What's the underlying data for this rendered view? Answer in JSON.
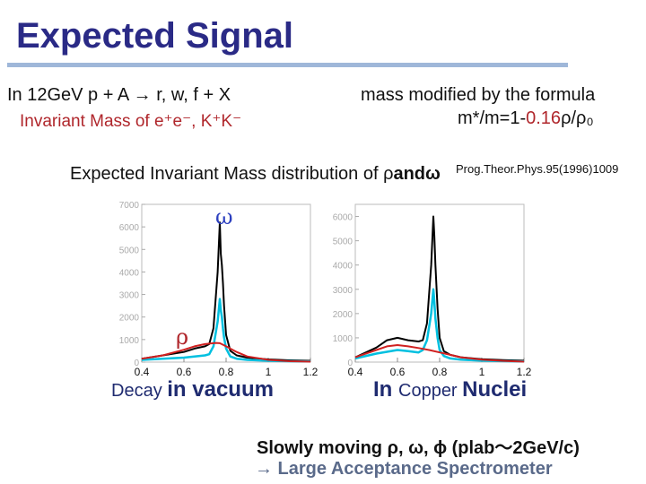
{
  "slide": {
    "title": "Expected Signal",
    "left_line1": "In 12GeV p + A → r, w, f + X",
    "left_line2": "Invariant Mass of e⁺e⁻, K⁺K⁻",
    "right_line1": "mass modified by the formula",
    "right_line2_prefix": "m*/m=1-",
    "right_line2_coef": "0.16",
    "right_line2_suffix": "ρ/ρ₀",
    "citation": "Prog.Theor.Phys.95(1996)1009",
    "dist_heading_prefix": "Expected Invariant Mass distribution of ",
    "dist_heading_rho": "ρ",
    "dist_heading_and": "and",
    "dist_heading_omega": "ω",
    "label_omega": "ω",
    "label_rho": "ρ",
    "caption_left_small": "Decay ",
    "caption_left_big": "in vacuum",
    "caption_right_big1": "In ",
    "caption_right_small": "Copper ",
    "caption_right_big2": "Nuclei",
    "slow_line": "Slowly moving ρ, ω, ϕ (plab〜2GeV/c)",
    "spectro_line": "→ Large Acceptance Spectrometer"
  },
  "chart_data": [
    {
      "type": "line",
      "x_ticks": [
        "0.4",
        "0.6",
        "0.8",
        "1",
        "1.2"
      ],
      "y_ticks": [
        "7000",
        "6000",
        "5000",
        "4000",
        "3000",
        "2000",
        "1000",
        "0"
      ],
      "xlim": [
        0.4,
        1.2
      ],
      "ylim": [
        0,
        7000
      ],
      "series": [
        {
          "color": "#000000",
          "x": [
            0.4,
            0.5,
            0.6,
            0.65,
            0.7,
            0.72,
            0.74,
            0.76,
            0.77,
            0.775,
            0.78,
            0.785,
            0.79,
            0.8,
            0.82,
            0.85,
            0.9,
            1.0,
            1.1,
            1.2
          ],
          "y": [
            150,
            300,
            450,
            600,
            700,
            800,
            1500,
            4000,
            6200,
            4800,
            4300,
            3500,
            2500,
            1200,
            500,
            300,
            200,
            120,
            80,
            60
          ]
        },
        {
          "color": "#00c0e0",
          "x": [
            0.4,
            0.5,
            0.6,
            0.65,
            0.7,
            0.72,
            0.74,
            0.76,
            0.77,
            0.775,
            0.78,
            0.785,
            0.79,
            0.8,
            0.82,
            0.85,
            0.9,
            1.0,
            1.1,
            1.2
          ],
          "y": [
            100,
            150,
            200,
            250,
            300,
            350,
            700,
            1800,
            2800,
            2300,
            2000,
            1500,
            1100,
            600,
            250,
            150,
            100,
            60,
            40,
            30
          ]
        },
        {
          "color": "#d02020",
          "x": [
            0.4,
            0.5,
            0.6,
            0.65,
            0.7,
            0.75,
            0.77,
            0.8,
            0.85,
            0.9,
            1.0,
            1.1,
            1.2
          ],
          "y": [
            150,
            300,
            550,
            700,
            800,
            850,
            840,
            700,
            450,
            250,
            100,
            40,
            20
          ]
        }
      ]
    },
    {
      "type": "line",
      "x_ticks": [
        "0.4",
        "0.6",
        "0.8",
        "1",
        "1.2"
      ],
      "y_ticks": [
        "6000",
        "5000",
        "4000",
        "3000",
        "2000",
        "1000",
        "0"
      ],
      "xlim": [
        0.4,
        1.2
      ],
      "ylim": [
        0,
        6500
      ],
      "series": [
        {
          "color": "#000000",
          "x": [
            0.4,
            0.5,
            0.55,
            0.6,
            0.65,
            0.7,
            0.72,
            0.74,
            0.76,
            0.77,
            0.775,
            0.78,
            0.79,
            0.8,
            0.82,
            0.85,
            0.9,
            1.0,
            1.1,
            1.2
          ],
          "y": [
            200,
            600,
            900,
            1000,
            900,
            850,
            900,
            1600,
            4000,
            6000,
            5200,
            4000,
            2200,
            1000,
            450,
            300,
            200,
            120,
            80,
            60
          ]
        },
        {
          "color": "#00c0e0",
          "x": [
            0.4,
            0.5,
            0.6,
            0.65,
            0.7,
            0.72,
            0.74,
            0.76,
            0.77,
            0.775,
            0.78,
            0.79,
            0.8,
            0.82,
            0.85,
            0.9,
            1.0,
            1.1,
            1.2
          ],
          "y": [
            150,
            350,
            500,
            450,
            400,
            500,
            900,
            2000,
            3000,
            2500,
            1800,
            1000,
            500,
            250,
            150,
            100,
            60,
            40,
            30
          ]
        },
        {
          "color": "#d02020",
          "x": [
            0.4,
            0.5,
            0.55,
            0.6,
            0.65,
            0.7,
            0.75,
            0.8,
            0.85,
            0.9,
            1.0,
            1.1,
            1.2
          ],
          "y": [
            200,
            500,
            650,
            700,
            650,
            580,
            500,
            400,
            300,
            200,
            100,
            50,
            20
          ]
        }
      ]
    }
  ]
}
